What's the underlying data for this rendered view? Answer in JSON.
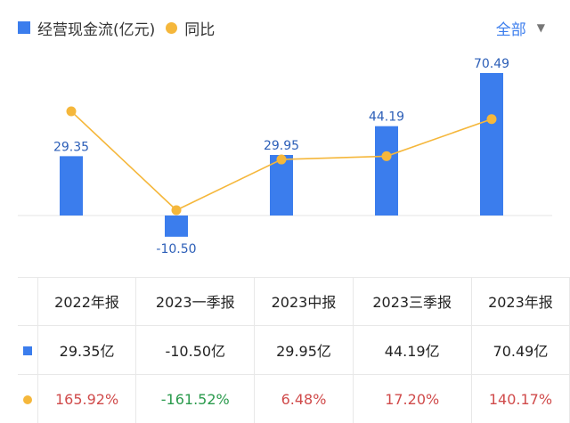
{
  "legend": {
    "bar_label": "经营现金流(亿元)",
    "line_label": "同比"
  },
  "filter": {
    "label": "全部",
    "caret": "▼"
  },
  "colors": {
    "bar": "#3b7ded",
    "line": "#f5b73b",
    "positive": "#d04b4b",
    "negative": "#2a9a4c"
  },
  "chart_data": {
    "type": "bar",
    "categories": [
      "2022年报",
      "2023一季报",
      "2023中报",
      "2023三季报",
      "2023年报"
    ],
    "series": [
      {
        "name": "经营现金流(亿元)",
        "type": "bar",
        "values": [
          29.35,
          -10.5,
          29.95,
          44.19,
          70.49
        ]
      },
      {
        "name": "同比",
        "type": "line",
        "values": [
          165.92,
          -161.52,
          6.48,
          17.2,
          140.17
        ]
      }
    ],
    "bar_labels": [
      "29.35",
      "-10.50",
      "29.95",
      "44.19",
      "70.49"
    ]
  },
  "table": {
    "headers": [
      "2022年报",
      "2023一季报",
      "2023中报",
      "2023三季报",
      "2023年报"
    ],
    "values": [
      "29.35亿",
      "-10.50亿",
      "29.95亿",
      "44.19亿",
      "70.49亿"
    ],
    "growth": [
      "165.92%",
      "-161.52%",
      "6.48%",
      "17.20%",
      "140.17%"
    ]
  }
}
